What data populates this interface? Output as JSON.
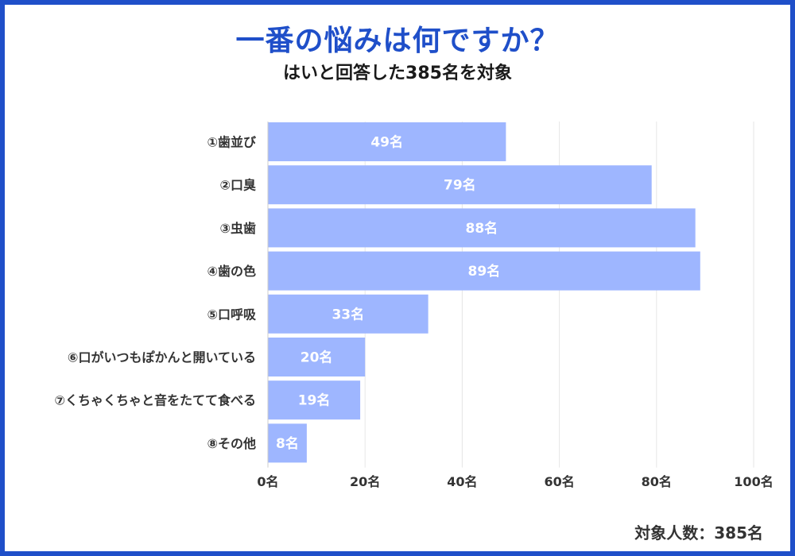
{
  "title": "一番の悩みは何ですか？",
  "subtitle": "はいと回答した385名を対象",
  "footnote": "対象人数：385名",
  "colors": {
    "frame": "#1f4fc9",
    "title": "#1f4fc9",
    "bar": "#9eb6ff",
    "bar_label": "#ffffff",
    "grid": "#e6e6e6",
    "text": "#333333"
  },
  "chart_data": {
    "type": "bar",
    "orientation": "horizontal",
    "categories": [
      "①歯並び",
      "②口臭",
      "③虫歯",
      "④歯の色",
      "⑤口呼吸",
      "⑥口がいつもぽかんと開いている",
      "⑦くちゃくちゃと音をたてて食べる",
      "⑧その他"
    ],
    "values": [
      49,
      79,
      88,
      89,
      33,
      20,
      19,
      8
    ],
    "value_labels": [
      "49名",
      "79名",
      "88名",
      "89名",
      "33名",
      "20名",
      "19名",
      "8名"
    ],
    "xlim": [
      0,
      100
    ],
    "xticks": [
      0,
      20,
      40,
      60,
      80,
      100
    ],
    "xtick_labels": [
      "0名",
      "20名",
      "40名",
      "60名",
      "80名",
      "100名"
    ],
    "grid": true,
    "legend": "none"
  }
}
